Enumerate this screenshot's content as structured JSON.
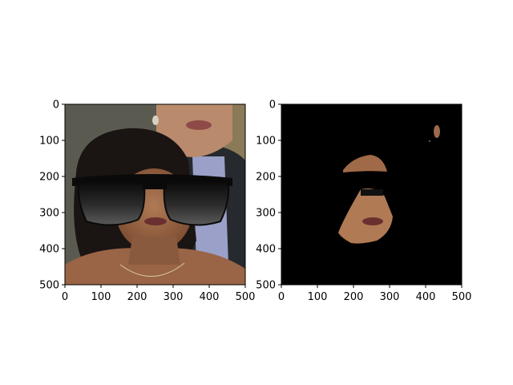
{
  "figure": {
    "background": "#ffffff"
  },
  "chart_data": [
    {
      "type": "image",
      "content": "photo: woman's face with overlaid black sunglasses; a man's chin and shirt behind her",
      "xlim": [
        0,
        500
      ],
      "ylim": [
        500,
        0
      ],
      "x_ticks": [
        "0",
        "100",
        "200",
        "300",
        "400",
        "500"
      ],
      "y_ticks": [
        "0",
        "100",
        "200",
        "300",
        "400",
        "500"
      ],
      "grid": false,
      "colors": {
        "sunglasses": "#0a0a0a",
        "skin": "#a06a48",
        "hair": "#1a1412",
        "suit": "#262a2e",
        "shirt": "#9aa0c8",
        "wall": "#8a7a58"
      }
    },
    {
      "type": "image",
      "content": "masked face regions on black background",
      "xlim": [
        0,
        500
      ],
      "ylim": [
        500,
        0
      ],
      "x_ticks": [
        "0",
        "100",
        "200",
        "300",
        "400",
        "500"
      ],
      "y_ticks": [
        "0",
        "100",
        "200",
        "300",
        "400",
        "500"
      ],
      "grid": false,
      "colors": {
        "background": "#000000",
        "skin": "#a06a48"
      }
    }
  ]
}
